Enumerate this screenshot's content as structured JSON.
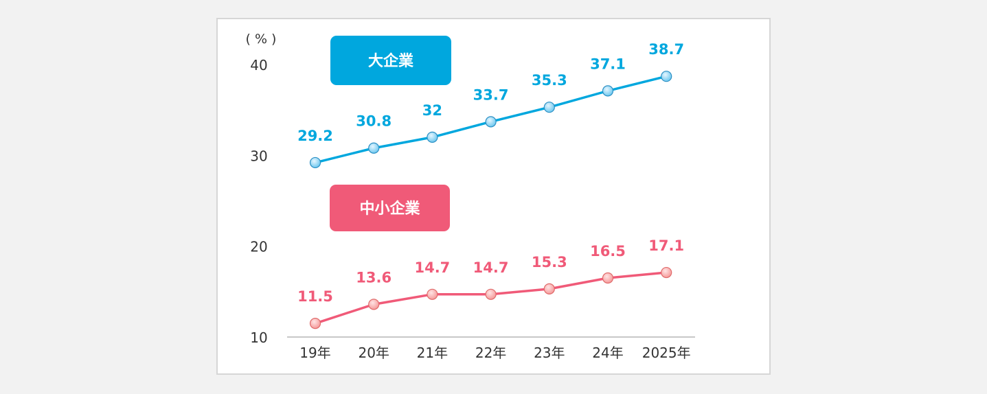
{
  "chart_data": {
    "type": "line",
    "unit_label": "( % )",
    "categories": [
      "19年",
      "20年",
      "21年",
      "22年",
      "23年",
      "24年",
      "2025年"
    ],
    "ylim": [
      10,
      40
    ],
    "yticks": [
      10,
      20,
      30,
      40
    ],
    "grid": false,
    "series": [
      {
        "name": "大企業",
        "color": "#00a7de",
        "values": [
          29.2,
          30.8,
          32,
          33.7,
          35.3,
          37.1,
          38.7
        ],
        "labels": [
          "29.2",
          "30.8",
          "32",
          "33.7",
          "35.3",
          "37.1",
          "38.7"
        ]
      },
      {
        "name": "中小企業",
        "color": "#f05a78",
        "values": [
          11.5,
          13.6,
          14.7,
          14.7,
          15.3,
          16.5,
          17.1
        ],
        "labels": [
          "11.5",
          "13.6",
          "14.7",
          "14.7",
          "15.3",
          "16.5",
          "17.1"
        ]
      }
    ]
  }
}
